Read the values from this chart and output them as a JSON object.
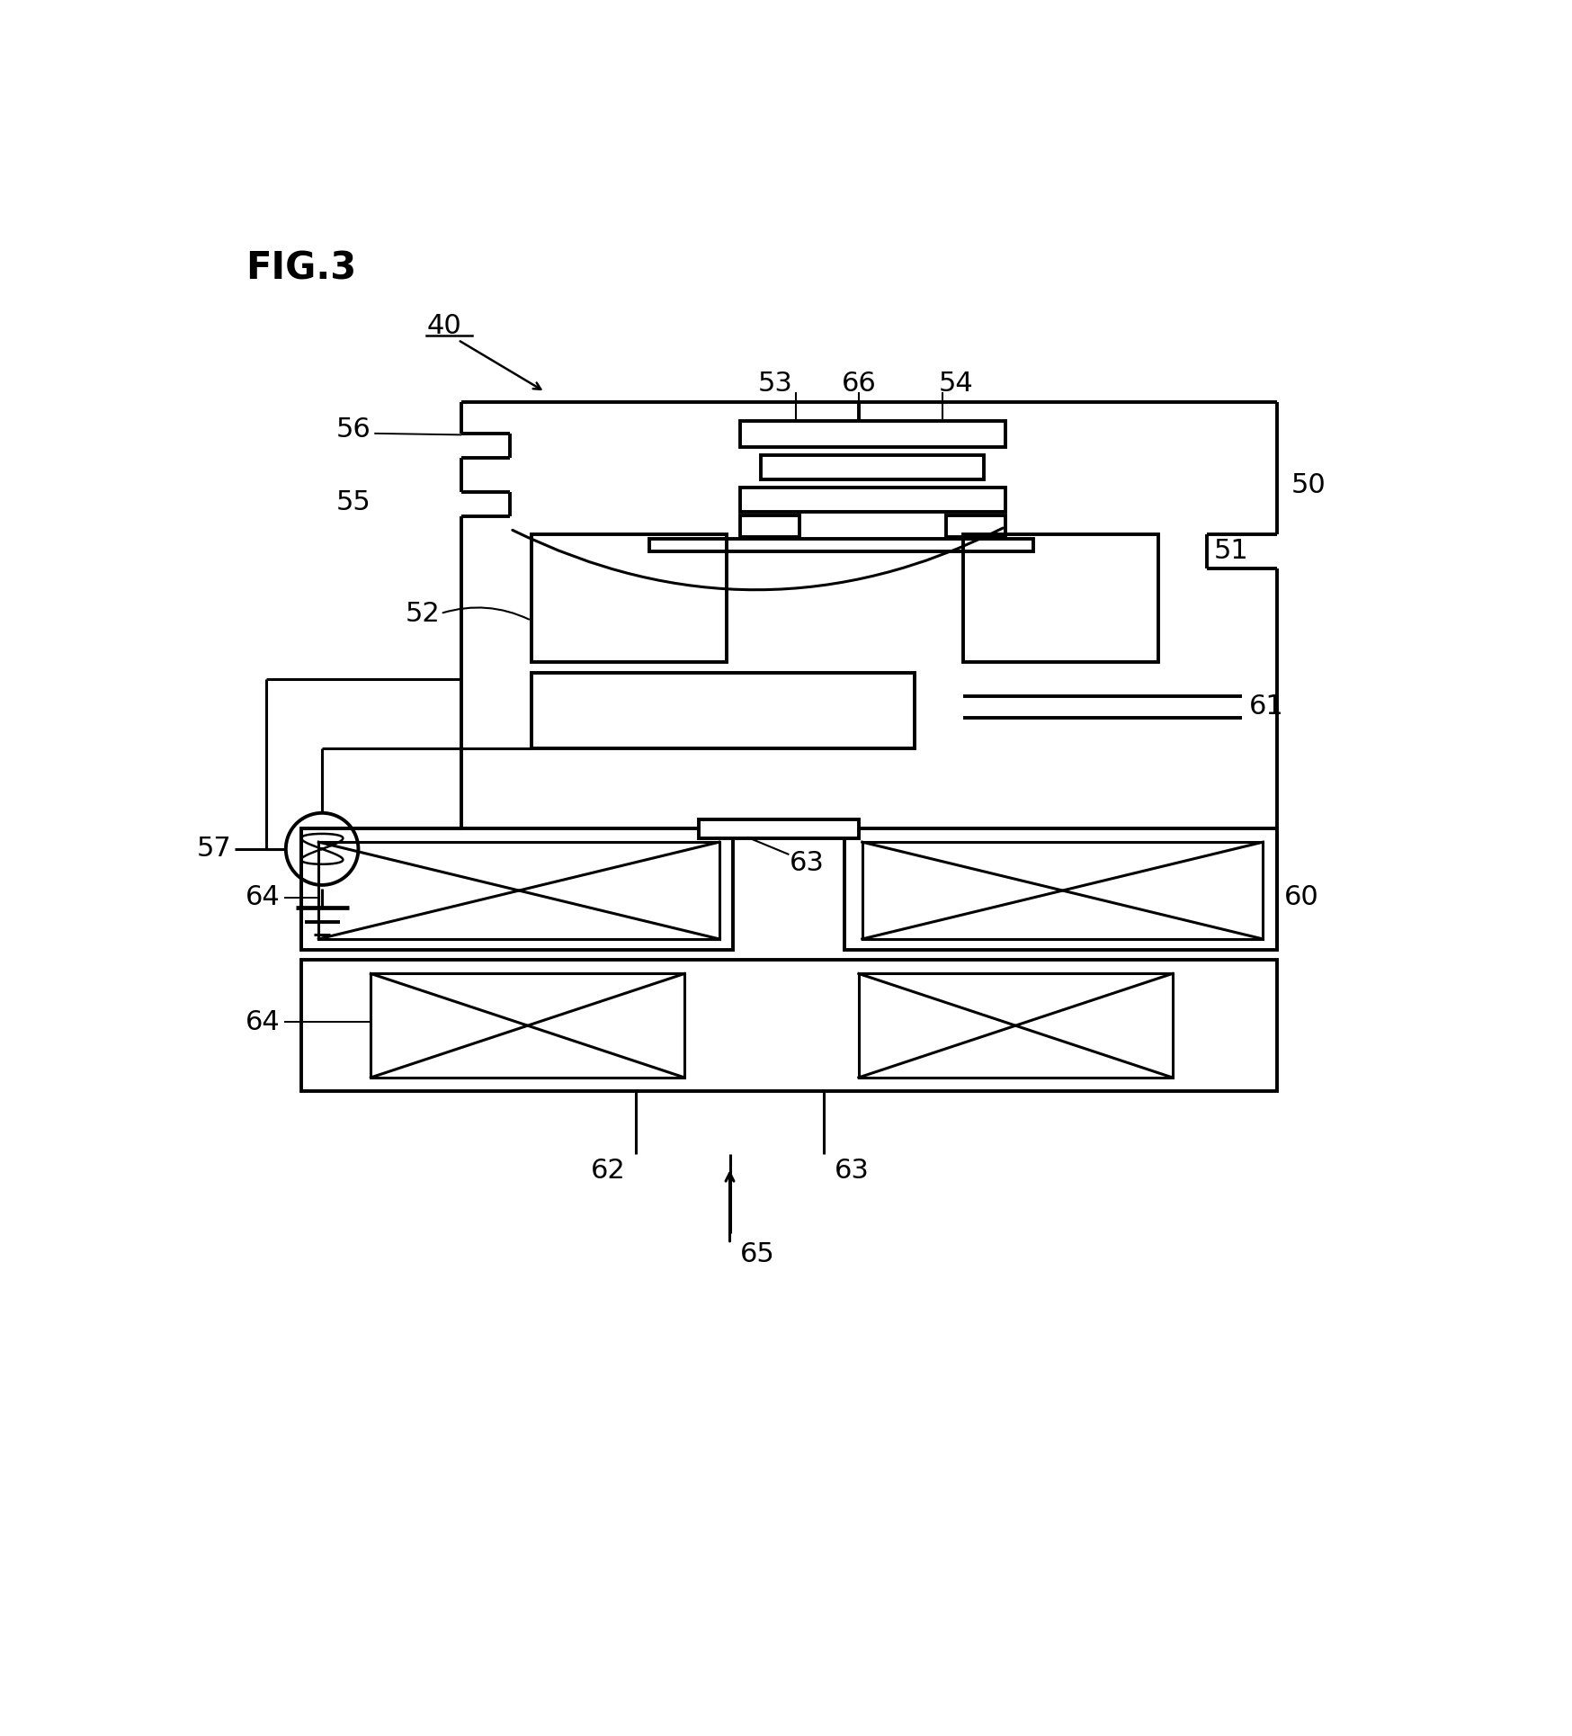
{
  "bg_color": "#ffffff",
  "lw": 2.2,
  "lw_thick": 2.8,
  "fig_title": "FIG.3",
  "label_40": "40",
  "label_50": "50",
  "label_51": "51",
  "label_52": "52",
  "label_53": "53",
  "label_54": "54",
  "label_55": "55",
  "label_56": "56",
  "label_57": "57",
  "label_60": "60",
  "label_61": "61",
  "label_62": "62",
  "label_63": "63",
  "label_64a": "64",
  "label_64b": "64",
  "label_65": "65",
  "label_66": "66"
}
